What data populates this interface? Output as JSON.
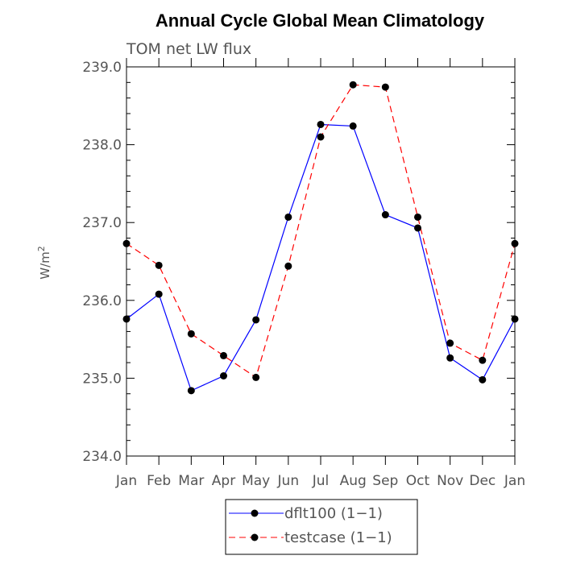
{
  "chart_data": {
    "type": "line",
    "title": "Annual Cycle Global Mean Climatology",
    "subtitle": "TOM net LW flux",
    "ylabel_main": "W/m",
    "ylabel_sup": "2",
    "xlabel": "",
    "categories": [
      "Jan",
      "Feb",
      "Mar",
      "Apr",
      "May",
      "Jun",
      "Jul",
      "Aug",
      "Sep",
      "Oct",
      "Nov",
      "Dec",
      "Jan"
    ],
    "ylim": [
      234.0,
      239.0
    ],
    "yticks": [
      234.0,
      235.0,
      236.0,
      237.0,
      238.0,
      239.0
    ],
    "ytick_labels": [
      "234.0",
      "235.0",
      "236.0",
      "237.0",
      "238.0",
      "239.0"
    ],
    "series": [
      {
        "name": "dflt100 (1-1)",
        "legend_label": "dflt100 (1−1)",
        "color": "#0000ff",
        "dash": "solid",
        "values": [
          235.76,
          236.08,
          234.84,
          235.03,
          235.75,
          237.07,
          238.26,
          238.24,
          237.1,
          236.93,
          235.26,
          234.98,
          235.76
        ]
      },
      {
        "name": "testcase (1-1)",
        "legend_label": "testcase (1−1)",
        "color": "#ff0000",
        "dash": "dashed",
        "values": [
          236.73,
          236.45,
          235.57,
          235.29,
          235.01,
          236.44,
          238.1,
          238.77,
          238.74,
          237.07,
          235.45,
          235.23,
          236.73
        ]
      }
    ],
    "legend_position": "bottom"
  }
}
